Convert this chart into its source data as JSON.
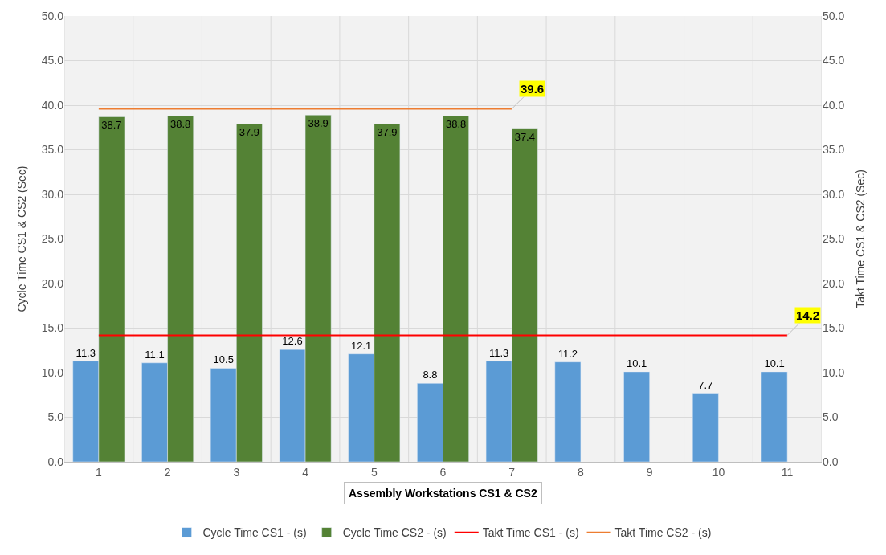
{
  "chart_data": {
    "type": "bar",
    "categories": [
      "1",
      "2",
      "3",
      "4",
      "5",
      "6",
      "7",
      "8",
      "9",
      "10",
      "11"
    ],
    "xlabel": "Assembly Workstations CS1 & CS2",
    "ylabel": "Cycle Time CS1 & CS2 (Sec)",
    "y2label": "Takt Time CS1 & CS2 (Sec)",
    "series": [
      {
        "name": "Cycle Time CS1 - (s)",
        "color": "#5b9bd5",
        "values": [
          11.3,
          11.1,
          10.5,
          12.6,
          12.1,
          8.8,
          11.3,
          11.2,
          10.1,
          7.7,
          10.1
        ],
        "value_labels": [
          "11.3",
          "11.1",
          "10.5",
          "12.6",
          "12.1",
          "8.8",
          "11.3",
          "11.2",
          "10.1",
          "7.7",
          "10.1"
        ]
      },
      {
        "name": "Cycle Time CS2 - (s)",
        "color": "#548235",
        "values": [
          38.7,
          38.8,
          37.9,
          38.9,
          37.9,
          38.8,
          37.4,
          null,
          null,
          null,
          null
        ],
        "value_labels": [
          "38.7",
          "38.8",
          "37.9",
          "38.9",
          "37.9",
          "38.8",
          "37.4",
          null,
          null,
          null,
          null
        ]
      },
      {
        "name": "Takt Time CS1 - (s)",
        "type": "line",
        "axis": "y2",
        "color": "#ff0000",
        "values": [
          14.2,
          14.2,
          14.2,
          14.2,
          14.2,
          14.2,
          14.2,
          14.2,
          14.2,
          14.2,
          14.2
        ],
        "value_labels": [
          null,
          null,
          null,
          null,
          null,
          null,
          null,
          null,
          null,
          null,
          "14.2"
        ]
      },
      {
        "name": "Takt Time CS2 - (s)",
        "type": "line",
        "axis": "y2",
        "color": "#ed7d31",
        "values": [
          39.6,
          39.6,
          39.6,
          39.6,
          39.6,
          39.6,
          39.6,
          null,
          null,
          null,
          null
        ],
        "value_labels": [
          null,
          null,
          null,
          null,
          null,
          null,
          "39.6",
          null,
          null,
          null,
          null
        ]
      }
    ],
    "ylim": [
      0,
      50
    ],
    "yticks": [
      {
        "value": 0,
        "label": "0.0"
      },
      {
        "value": 5,
        "label": "5.0"
      },
      {
        "value": 10,
        "label": "10.0"
      },
      {
        "value": 15,
        "label": "15.0"
      },
      {
        "value": 20,
        "label": "20.0"
      },
      {
        "value": 25,
        "label": "25.0"
      },
      {
        "value": 30,
        "label": "30.0"
      },
      {
        "value": 35,
        "label": "35.0"
      },
      {
        "value": 40,
        "label": "40.0"
      },
      {
        "value": 45,
        "label": "45.0"
      },
      {
        "value": 50,
        "label": "50.0"
      }
    ],
    "y2lim": [
      0,
      50
    ],
    "y2ticks": [
      {
        "value": 0,
        "label": "0.0"
      },
      {
        "value": 5,
        "label": "5.0"
      },
      {
        "value": 10,
        "label": "10.0"
      },
      {
        "value": 15,
        "label": "15.0"
      },
      {
        "value": 20,
        "label": "20.0"
      },
      {
        "value": 25,
        "label": "25.0"
      },
      {
        "value": 30,
        "label": "30.0"
      },
      {
        "value": 35,
        "label": "35.0"
      },
      {
        "value": 40,
        "label": "40.0"
      },
      {
        "value": 45,
        "label": "45.0"
      },
      {
        "value": 50,
        "label": "50.0"
      }
    ],
    "grid": true,
    "legend": "bottom",
    "marker": "none"
  }
}
